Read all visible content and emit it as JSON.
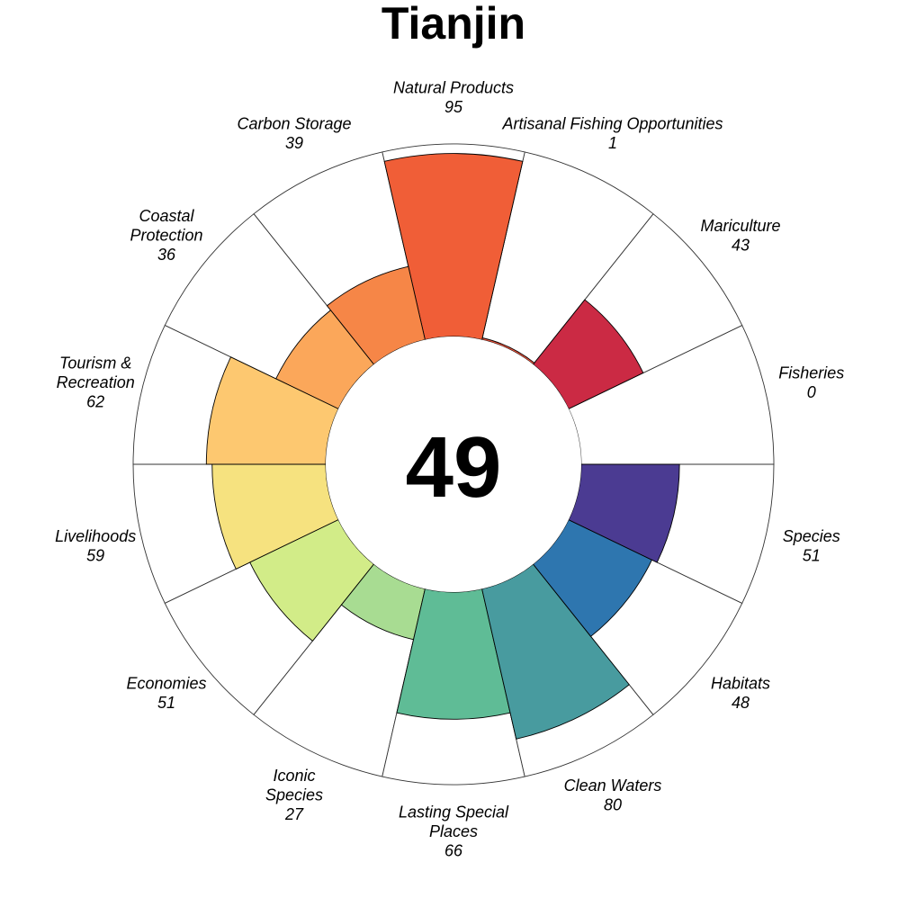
{
  "chart_data": {
    "type": "rose",
    "title": "Tianjin",
    "center_score": "49",
    "ylim": [
      0,
      100
    ],
    "colors": {
      "outline": "#333333",
      "segment_border": "#000000",
      "background": "#ffffff"
    },
    "goals": [
      {
        "lines": [
          "Fisheries"
        ],
        "score": 0,
        "color": "#9E0142"
      },
      {
        "lines": [
          "Mariculture"
        ],
        "score": 43,
        "color": "#CB2A44"
      },
      {
        "lines": [
          "Artisanal Fishing Opportunities"
        ],
        "score": 1,
        "color": "#E3513B"
      },
      {
        "lines": [
          "Natural Products"
        ],
        "score": 95,
        "color": "#F05E37"
      },
      {
        "lines": [
          "Carbon Storage"
        ],
        "score": 39,
        "color": "#F68647"
      },
      {
        "lines": [
          "Coastal",
          "Protection"
        ],
        "score": 36,
        "color": "#FBA75A"
      },
      {
        "lines": [
          "Tourism &",
          "Recreation"
        ],
        "score": 62,
        "color": "#FDC870"
      },
      {
        "lines": [
          "Livelihoods"
        ],
        "score": 59,
        "color": "#F6E27F"
      },
      {
        "lines": [
          "Economies"
        ],
        "score": 51,
        "color": "#D2EC88"
      },
      {
        "lines": [
          "Iconic",
          "Species"
        ],
        "score": 27,
        "color": "#A8DC92"
      },
      {
        "lines": [
          "Lasting Special",
          "Places"
        ],
        "score": 66,
        "color": "#5FBC96"
      },
      {
        "lines": [
          "Clean Waters"
        ],
        "score": 80,
        "color": "#489B9F"
      },
      {
        "lines": [
          "Habitats"
        ],
        "score": 48,
        "color": "#2E76AF"
      },
      {
        "lines": [
          "Species"
        ],
        "score": 51,
        "color": "#4B3B92"
      }
    ]
  }
}
